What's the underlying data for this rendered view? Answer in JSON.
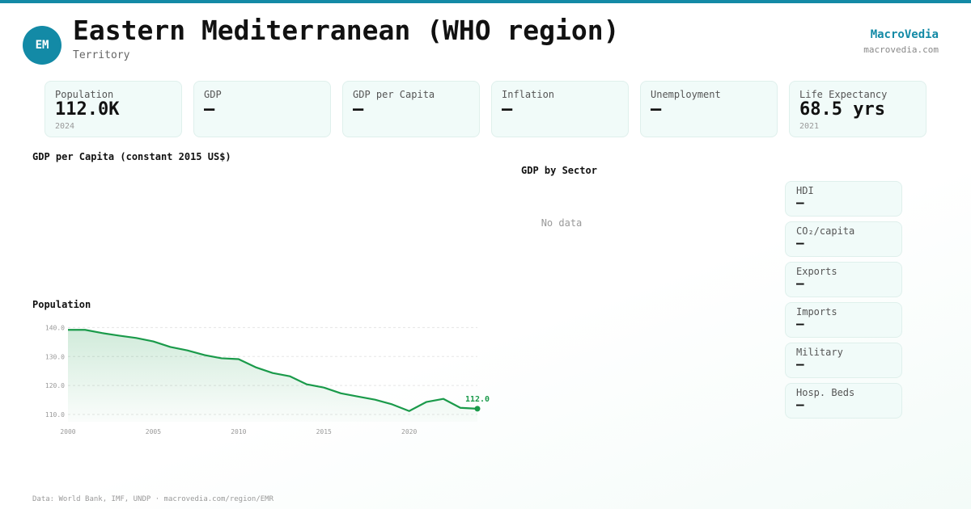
{
  "header": {
    "badge": "EM",
    "title": "Eastern Mediterranean (WHO region)",
    "subtitle": "Territory",
    "brand": "MacroVedia",
    "site": "macrovedia.com"
  },
  "kpis": [
    {
      "label": "Population",
      "value": "112.0K",
      "note": "2024"
    },
    {
      "label": "GDP",
      "value": "—"
    },
    {
      "label": "GDP per Capita",
      "value": "—"
    },
    {
      "label": "Inflation",
      "value": "—"
    },
    {
      "label": "Unemployment",
      "value": "—"
    },
    {
      "label": "Life Expectancy",
      "value": "68.5 yrs",
      "note": "2021"
    }
  ],
  "gdp_per_capita_panel": {
    "title": "GDP per Capita (constant 2015 US$)"
  },
  "sector_panel": {
    "title": "GDP by Sector",
    "message": "No data"
  },
  "side_stats": [
    {
      "label": "HDI",
      "value": "—"
    },
    {
      "label": "CO₂/capita",
      "value": "—"
    },
    {
      "label": "Exports",
      "value": "—"
    },
    {
      "label": "Imports",
      "value": "—"
    },
    {
      "label": "Military",
      "value": "—"
    },
    {
      "label": "Hosp. Beds",
      "value": "—"
    }
  ],
  "chart_data": {
    "type": "line",
    "title": "Population",
    "x": [
      2000,
      2001,
      2002,
      2003,
      2004,
      2005,
      2006,
      2007,
      2008,
      2009,
      2010,
      2011,
      2012,
      2013,
      2014,
      2015,
      2016,
      2017,
      2018,
      2019,
      2020,
      2021,
      2022,
      2023,
      2024
    ],
    "values": [
      139.2,
      139.2,
      138.1,
      137.2,
      136.4,
      135.2,
      133.3,
      132.1,
      130.5,
      129.4,
      129.1,
      126.3,
      124.3,
      123.2,
      120.4,
      119.3,
      117.3,
      116.2,
      115.1,
      113.5,
      111.2,
      114.3,
      115.4,
      112.3,
      112.0
    ],
    "value_labels": [
      null,
      null,
      null,
      null,
      null,
      null,
      null,
      null,
      null,
      null,
      null,
      null,
      null,
      null,
      null,
      null,
      null,
      null,
      null,
      null,
      null,
      null,
      null,
      null,
      "112.0"
    ],
    "color": "#1a9a4a",
    "xlim": [
      2000,
      2024
    ],
    "ylim": [
      107.5,
      141.5
    ],
    "xticks": [
      2000,
      2005,
      2010,
      2015,
      2020
    ],
    "yticks": [
      {
        "value": 110,
        "label": "110.0"
      },
      {
        "value": 120,
        "label": "120.0"
      },
      {
        "value": 130,
        "label": "130.0"
      },
      {
        "value": 140,
        "label": "140.0"
      }
    ],
    "grid": true
  },
  "footer": "Data: World Bank, IMF, UNDP · macrovedia.com/region/EMR"
}
